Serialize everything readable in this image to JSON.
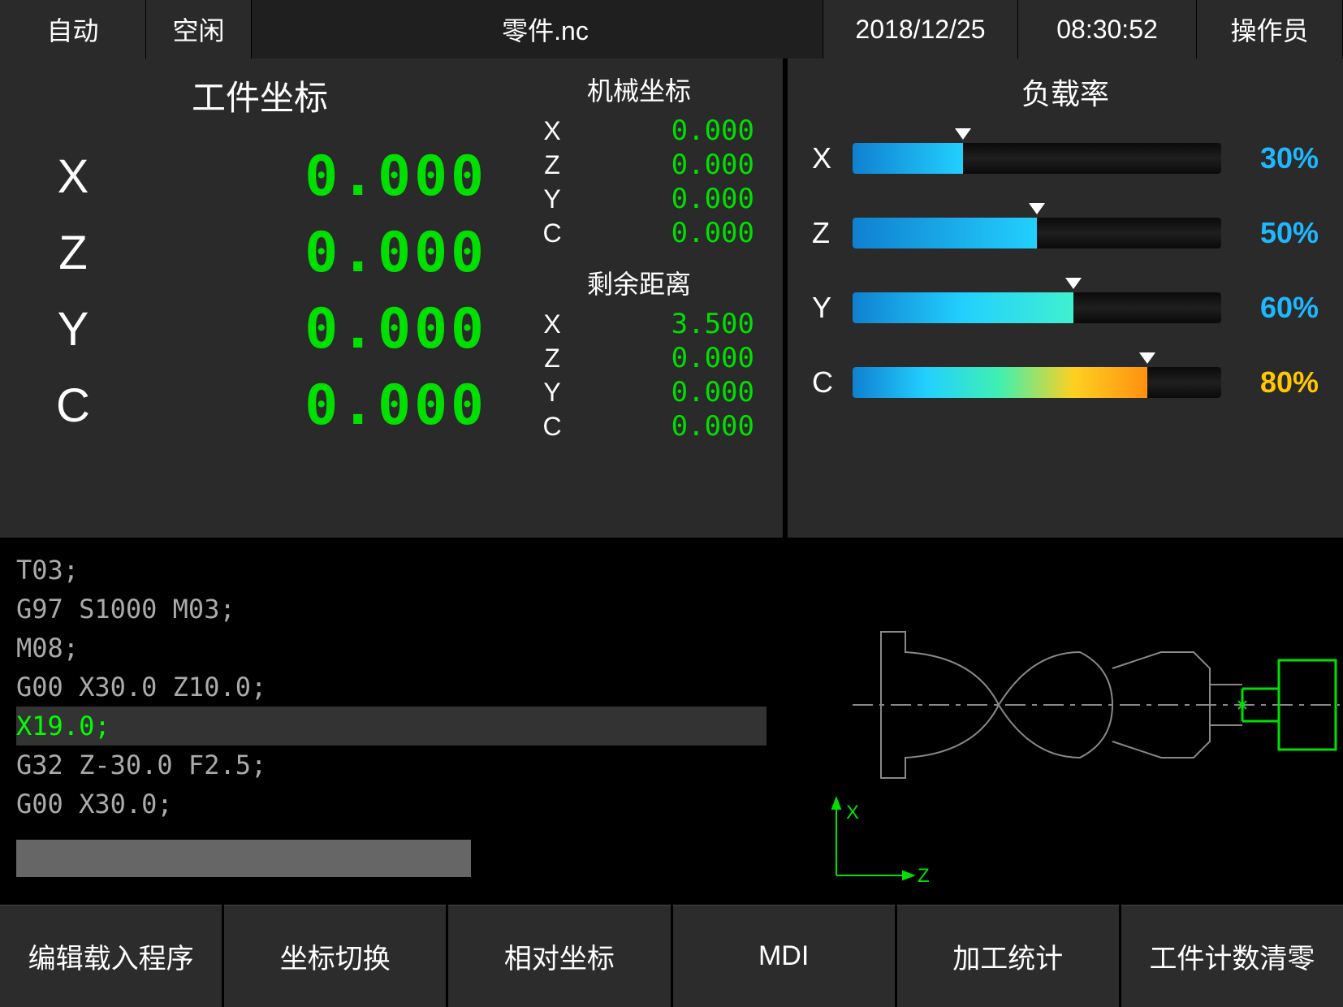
{
  "topbar": {
    "mode": "自动",
    "state": "空闲",
    "file": "零件.nc",
    "date": "2018/12/25",
    "time": "08:30:52",
    "user": "操作员"
  },
  "colors": {
    "value_green": "#00e000",
    "value_blue": "#1fb8ff",
    "value_yellow": "#ffc800",
    "bg_panel": "#2a2a2a"
  },
  "work_coords": {
    "title": "工件坐标",
    "axes": [
      {
        "label": "X",
        "value": "0.000"
      },
      {
        "label": "Z",
        "value": "0.000"
      },
      {
        "label": "Y",
        "value": "0.000"
      },
      {
        "label": "C",
        "value": "0.000"
      }
    ]
  },
  "machine_coords": {
    "title": "机械坐标",
    "axes": [
      {
        "label": "X",
        "value": "0.000"
      },
      {
        "label": "Z",
        "value": "0.000"
      },
      {
        "label": "Y",
        "value": "0.000"
      },
      {
        "label": "C",
        "value": "0.000"
      }
    ]
  },
  "remain_dist": {
    "title": "剩余距离",
    "axes": [
      {
        "label": "X",
        "value": "3.500"
      },
      {
        "label": "Z",
        "value": "0.000"
      },
      {
        "label": "Y",
        "value": "0.000"
      },
      {
        "label": "C",
        "value": "0.000"
      }
    ]
  },
  "load": {
    "title": "负载率",
    "bars": [
      {
        "label": "X",
        "pct": 30,
        "pct_text": "30%",
        "pct_color": "#1fb8ff",
        "gradient": "linear-gradient(to right, #1080d0, #22d0ff)"
      },
      {
        "label": "Z",
        "pct": 50,
        "pct_text": "50%",
        "pct_color": "#1fb8ff",
        "gradient": "linear-gradient(to right, #1080d0, #22d0ff)"
      },
      {
        "label": "Y",
        "pct": 60,
        "pct_text": "60%",
        "pct_color": "#1fb8ff",
        "gradient": "linear-gradient(to right, #1080d0, #22d0ff, #40f0d0)"
      },
      {
        "label": "C",
        "pct": 80,
        "pct_text": "80%",
        "pct_color": "#ffc800",
        "gradient": "linear-gradient(to right, #1080d0, #22d0ff, #40f0b0, #ffd020, #ff9010)"
      }
    ]
  },
  "gcode": {
    "lines": [
      {
        "text": "T03;",
        "active": false
      },
      {
        "text": "G97 S1000 M03;",
        "active": false
      },
      {
        "text": "M08;",
        "active": false
      },
      {
        "text": "G00 X30.0 Z10.0;",
        "active": false
      },
      {
        "text": "X19.0;",
        "active": true
      },
      {
        "text": "G32 Z-30.0 F2.5;",
        "active": false
      },
      {
        "text": "G00 X30.0;",
        "active": false
      }
    ]
  },
  "preview": {
    "x_label": "X",
    "z_label": "Z"
  },
  "footer": {
    "buttons": [
      "编辑载入程序",
      "坐标切换",
      "相对坐标",
      "MDI",
      "加工统计",
      "工件计数清零"
    ]
  }
}
